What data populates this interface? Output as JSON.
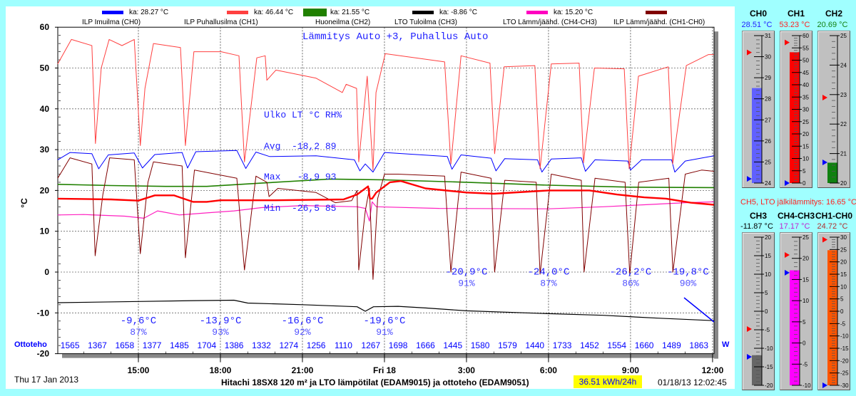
{
  "legend": [
    {
      "label": "ka: 28.27 °C",
      "color": "#0000ff",
      "series": "ILP Imuilma (CH0)"
    },
    {
      "label": "ka: 46.44 °C",
      "color": "#ff4040",
      "series": "ILP Puhallusilma (CH1)"
    },
    {
      "label": "ka: 21.55 °C",
      "color": "#208000",
      "series": "Huoneilma (CH2)"
    },
    {
      "label": "ka: -8.86 °C",
      "color": "#000000",
      "series": "LTO Tuloilma (CH3)"
    },
    {
      "label": "ka: 15.20 °C",
      "color": "#ff00c0",
      "series": "LTO Lämm/jäähd. (CH4-CH3)"
    },
    {
      "label": "",
      "color": "#800000",
      "series": "ILP Lämm/jäähd. (CH1-CH0)"
    }
  ],
  "mode_text": "Lämmitys Auto +3, Puhallus Auto",
  "stats": {
    "lines": [
      "Ulko LT °C RH%",
      "Avg  -18,2 89",
      "Max   -8,9 93",
      "Min  -26,5 85"
    ]
  },
  "chart_data": {
    "type": "line",
    "ylabel": "°C",
    "ylim": [
      -20,
      60
    ],
    "yticks": [
      "60",
      "50",
      "40",
      "30",
      "20",
      "10",
      "0",
      "-10",
      "-20"
    ],
    "xlim_hours": [
      12,
      36.05
    ],
    "xticks": [
      {
        "t": 15,
        "label": "15:00"
      },
      {
        "t": 18,
        "label": "18:00"
      },
      {
        "t": 21,
        "label": "21:00"
      },
      {
        "t": 24,
        "label": "Fri 18"
      },
      {
        "t": 27,
        "label": "3:00"
      },
      {
        "t": 30,
        "label": "6:00"
      },
      {
        "t": 33,
        "label": "9:00"
      },
      {
        "t": 36,
        "label": "12:00"
      }
    ],
    "series": [
      {
        "name": "CH2",
        "color": "#208000",
        "width": 1.6,
        "points": [
          [
            12.05,
            21.5
          ],
          [
            14,
            21.2
          ],
          [
            16,
            21.0
          ],
          [
            17.5,
            21.0
          ],
          [
            19.5,
            21.8
          ],
          [
            22,
            22.8
          ],
          [
            24,
            22.6
          ],
          [
            27,
            22.0
          ],
          [
            30,
            21.3
          ],
          [
            33,
            20.8
          ],
          [
            36.05,
            20.7
          ]
        ]
      },
      {
        "name": "CH4-CH3",
        "color": "#ff20c0",
        "width": 1.2,
        "points": [
          [
            12.05,
            14
          ],
          [
            13,
            14.1
          ],
          [
            14.5,
            13.7
          ],
          [
            15.2,
            13.2
          ],
          [
            15.7,
            15
          ],
          [
            16.5,
            14
          ],
          [
            17.5,
            14.5
          ],
          [
            18.5,
            15
          ],
          [
            19.5,
            15.8
          ],
          [
            21,
            16.3
          ],
          [
            23,
            16
          ],
          [
            23.3,
            15.6
          ],
          [
            23.45,
            12.5
          ],
          [
            23.55,
            17.2
          ],
          [
            23.7,
            16
          ],
          [
            26,
            15.6
          ],
          [
            30,
            15.5
          ],
          [
            32,
            16
          ],
          [
            33.5,
            16.5
          ],
          [
            35,
            17
          ],
          [
            36.05,
            17.2
          ]
        ]
      },
      {
        "name": "CH3",
        "color": "#000000",
        "width": 1.2,
        "points": [
          [
            12.05,
            -7.5
          ],
          [
            15,
            -7.2
          ],
          [
            17,
            -7
          ],
          [
            18.5,
            -6.9
          ],
          [
            19,
            -7.6
          ],
          [
            21,
            -8
          ],
          [
            23,
            -8.5
          ],
          [
            23.3,
            -9.6
          ],
          [
            23.6,
            -8.5
          ],
          [
            24.5,
            -8.4
          ],
          [
            25.5,
            -8.8
          ],
          [
            27,
            -9.5
          ],
          [
            30,
            -10.2
          ],
          [
            32,
            -10.6
          ],
          [
            34,
            -11.3
          ],
          [
            36.05,
            -11.9
          ]
        ]
      },
      {
        "name": "CH0",
        "color": "#0000ff",
        "width": 1,
        "points": [
          [
            12.05,
            27.5
          ],
          [
            12.5,
            29.3
          ],
          [
            13.3,
            29
          ],
          [
            13.55,
            25.3
          ],
          [
            13.9,
            28.7
          ],
          [
            14.85,
            29.2
          ],
          [
            15.15,
            25.5
          ],
          [
            15.6,
            28.8
          ],
          [
            16.6,
            29.3
          ],
          [
            16.8,
            25.5
          ],
          [
            17.1,
            29.5
          ],
          [
            18.6,
            29.8
          ],
          [
            18.93,
            25.4
          ],
          [
            19.3,
            29.4
          ],
          [
            19.8,
            28.3
          ],
          [
            21.5,
            28.5
          ],
          [
            22.9,
            27.5
          ],
          [
            23.1,
            24.8
          ],
          [
            23.3,
            26.5
          ],
          [
            23.58,
            24.5
          ],
          [
            24.0,
            29.3
          ],
          [
            26.3,
            28.3
          ],
          [
            26.47,
            25.2
          ],
          [
            26.8,
            28.7
          ],
          [
            27.9,
            27.9
          ],
          [
            28.08,
            24.8
          ],
          [
            28.4,
            27.8
          ],
          [
            29.6,
            27.5
          ],
          [
            29.76,
            24.5
          ],
          [
            30.1,
            27.7
          ],
          [
            31.2,
            28
          ],
          [
            31.35,
            24.7
          ],
          [
            31.7,
            27.5
          ],
          [
            32.9,
            27.2
          ],
          [
            33.0,
            25
          ],
          [
            33.4,
            27.5
          ],
          [
            34.5,
            27.5
          ],
          [
            34.62,
            24.5
          ],
          [
            35.0,
            27.2
          ],
          [
            36.05,
            28.5
          ]
        ]
      },
      {
        "name": "CH1-CH0",
        "color": "#800000",
        "width": 1,
        "points": [
          [
            12.05,
            23
          ],
          [
            12.5,
            28
          ],
          [
            13.3,
            26.5
          ],
          [
            13.42,
            4
          ],
          [
            13.7,
            19
          ],
          [
            13.95,
            28
          ],
          [
            14.85,
            27.5
          ],
          [
            15.07,
            4.5
          ],
          [
            15.35,
            22
          ],
          [
            15.55,
            27
          ],
          [
            16.6,
            26
          ],
          [
            16.72,
            3.5
          ],
          [
            17.05,
            25
          ],
          [
            18.6,
            23
          ],
          [
            18.88,
            0.5
          ],
          [
            19.3,
            23.5
          ],
          [
            19.7,
            22
          ],
          [
            19.78,
            18.5
          ],
          [
            20.1,
            20.5
          ],
          [
            21.5,
            19.5
          ],
          [
            22.2,
            17
          ],
          [
            22.8,
            17.5
          ],
          [
            23.0,
            20
          ],
          [
            23.06,
            0.5
          ],
          [
            23.3,
            15
          ],
          [
            23.45,
            20.5
          ],
          [
            23.58,
            -1.8
          ],
          [
            23.75,
            18
          ],
          [
            24.0,
            24
          ],
          [
            24.5,
            24
          ],
          [
            26.2,
            23.5
          ],
          [
            26.43,
            0
          ],
          [
            26.8,
            24.5
          ],
          [
            27.9,
            23
          ],
          [
            28.03,
            0
          ],
          [
            28.4,
            22.5
          ],
          [
            29.55,
            22
          ],
          [
            29.69,
            -0.5
          ],
          [
            30.1,
            24
          ],
          [
            31.2,
            22.5
          ],
          [
            31.3,
            0
          ],
          [
            31.7,
            23
          ],
          [
            32.8,
            22
          ],
          [
            32.97,
            -0.5
          ],
          [
            33.3,
            22
          ],
          [
            34.4,
            23
          ],
          [
            34.55,
            0
          ],
          [
            35.0,
            24
          ],
          [
            35.6,
            25
          ],
          [
            36.05,
            24.7
          ]
        ]
      },
      {
        "name": "CH5",
        "color": "#ff0000",
        "width": 2.4,
        "points": [
          [
            12.05,
            18
          ],
          [
            14,
            17.8
          ],
          [
            15,
            17.5
          ],
          [
            15.6,
            18.8
          ],
          [
            16.3,
            18.8
          ],
          [
            17,
            17.2
          ],
          [
            17.5,
            17.2
          ],
          [
            18,
            17.6
          ],
          [
            20,
            17.6
          ],
          [
            22.5,
            17.8
          ],
          [
            23.0,
            19
          ],
          [
            23.4,
            21
          ],
          [
            23.47,
            18
          ],
          [
            23.55,
            18
          ],
          [
            23.7,
            19.5
          ],
          [
            24.2,
            22
          ],
          [
            24.6,
            22.3
          ],
          [
            25.5,
            20.5
          ],
          [
            27,
            19.5
          ],
          [
            28,
            19.2
          ],
          [
            30,
            20
          ],
          [
            31.5,
            20
          ],
          [
            32.5,
            19
          ],
          [
            33.5,
            18.3
          ],
          [
            34.3,
            18
          ],
          [
            35.2,
            17
          ],
          [
            36.05,
            16.5
          ]
        ]
      },
      {
        "name": "CH1",
        "color": "#ff4040",
        "width": 1,
        "points": [
          [
            12.05,
            51
          ],
          [
            12.55,
            57
          ],
          [
            13.3,
            55.5
          ],
          [
            13.43,
            31.5
          ],
          [
            13.64,
            50
          ],
          [
            13.93,
            57
          ],
          [
            14.4,
            55.5
          ],
          [
            14.85,
            57
          ],
          [
            15.07,
            31
          ],
          [
            15.24,
            45
          ],
          [
            15.55,
            56
          ],
          [
            16.54,
            55
          ],
          [
            16.72,
            31
          ],
          [
            17.03,
            54
          ],
          [
            18.03,
            54
          ],
          [
            18.68,
            53
          ],
          [
            18.88,
            27
          ],
          [
            19.33,
            52.5
          ],
          [
            19.64,
            53
          ],
          [
            19.7,
            47
          ],
          [
            20.03,
            49.5
          ],
          [
            21.5,
            47.5
          ],
          [
            22.46,
            44
          ],
          [
            22.6,
            46
          ],
          [
            22.98,
            45
          ],
          [
            23.06,
            27
          ],
          [
            23.37,
            48
          ],
          [
            23.58,
            25
          ],
          [
            23.69,
            44
          ],
          [
            24.03,
            53.5
          ],
          [
            26.2,
            51.5
          ],
          [
            26.43,
            26.5
          ],
          [
            26.8,
            53
          ],
          [
            27.86,
            51.2
          ],
          [
            28.03,
            29
          ],
          [
            28.38,
            50.3
          ],
          [
            29.5,
            50.6
          ],
          [
            29.69,
            25.3
          ],
          [
            30.1,
            51
          ],
          [
            31.12,
            51.2
          ],
          [
            31.28,
            26.8
          ],
          [
            31.68,
            50
          ],
          [
            32.77,
            49.8
          ],
          [
            32.95,
            25.3
          ],
          [
            33.29,
            48
          ],
          [
            34.38,
            50.3
          ],
          [
            34.54,
            26.5
          ],
          [
            35.04,
            50.6
          ],
          [
            35.85,
            53.3
          ],
          [
            36.05,
            53.3
          ]
        ]
      }
    ],
    "annotations": [
      {
        "t": 15,
        "v": -10.5,
        "temp": "-9,6°C",
        "rh": "87%"
      },
      {
        "t": 18,
        "v": -10.5,
        "temp": "-13,9°C",
        "rh": "93%"
      },
      {
        "t": 21,
        "v": -10.5,
        "temp": "-16,6°C",
        "rh": "92%"
      },
      {
        "t": 24,
        "v": -10.5,
        "temp": "-19,6°C",
        "rh": "91%"
      },
      {
        "t": 27,
        "v": 1.5,
        "temp": "-20,9°C",
        "rh": "91%"
      },
      {
        "t": 30,
        "v": 1.5,
        "temp": "-24,0°C",
        "rh": "87%"
      },
      {
        "t": 33,
        "v": 1.5,
        "temp": "-26,2°C",
        "rh": "86%"
      },
      {
        "t": 35.1,
        "v": 1.5,
        "temp": "-19,8°C",
        "rh": "90%"
      }
    ]
  },
  "power": {
    "label": "Ottoteho",
    "unit": "W",
    "values": [
      "1565",
      "1367",
      "1658",
      "1377",
      "1485",
      "1704",
      "1386",
      "1332",
      "1274",
      "1256",
      "1110",
      "1267",
      "1698",
      "1666",
      "1445",
      "1580",
      "1579",
      "1440",
      "1733",
      "1452",
      "1554",
      "1660",
      "1489",
      "1863"
    ]
  },
  "footer": {
    "date": "Thu 17 Jan 2013",
    "title": "Hitachi 18SX8 120 m² ja LTO lämpötilat (EDAM9015) ja ottoteho (EDAM9051)",
    "energy": "36.51 kWh/24h",
    "timestamp": "01/18/13 12:02:45"
  },
  "ch5_text": "CH5, LTO jälkilämmitys: 16.65 °C",
  "gauges": [
    {
      "title": "CH0",
      "value_text": "28.51 °C",
      "value": 28.51,
      "min": 24,
      "max": 31,
      "label_step": 1,
      "minor": 0.2,
      "max_marker": 30.2,
      "min_marker": 24.2,
      "fill": "#6060ff",
      "text_color": "#2020ff"
    },
    {
      "title": "CH1",
      "value_text": "53.23 °C",
      "value": 53.23,
      "min": 0,
      "max": 60,
      "label_step": 5,
      "minor": 1,
      "max_marker": 57.2,
      "min_marker": 0,
      "fill": "#ff0000",
      "text_color": "#ff2020"
    },
    {
      "title": "CH2",
      "value_text": "20.69 °C",
      "value": 20.69,
      "min": 20,
      "max": 25,
      "label_step": 1,
      "minor": 0.2,
      "max_marker": 22.9,
      "min_marker": 20.7,
      "fill": "#108010",
      "text_color": "#108010"
    },
    {
      "title": "CH3",
      "value_text": "-11.87 °C",
      "value": -11.87,
      "min": -20,
      "max": 20,
      "label_step": 5,
      "minor": 1,
      "max_marker": -4.8,
      "min_marker": -12.3,
      "fill": "#666666",
      "text_color": "#000000"
    },
    {
      "title": "CH4-CH3",
      "value_text": "17.17 °C",
      "value": 17.17,
      "min": -10,
      "max": 25,
      "label_step": 5,
      "minor": 1,
      "max_marker": 20.8,
      "min_marker": 16.6,
      "fill": "#ff00ff",
      "text_color": "#c020d0"
    },
    {
      "title": "CH1-CH0",
      "value_text": "24.72 °C",
      "value": 24.72,
      "min": -30,
      "max": 30,
      "label_step": 5,
      "minor": 1,
      "max_marker": 29,
      "min_marker": -30,
      "fill": "#ff5500",
      "text_color": "#b03030"
    }
  ]
}
